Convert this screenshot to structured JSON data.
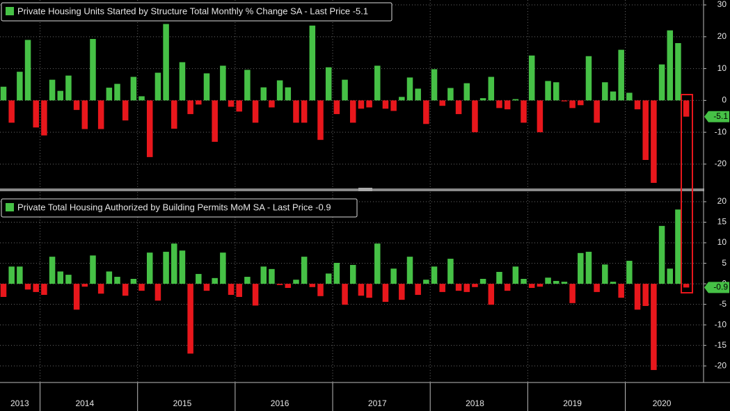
{
  "chart_data": [
    {
      "type": "bar",
      "title": "Private Housing Units Started by Structure Total Monthly % Change SA - Last Price -5.1",
      "values": [
        4.3,
        -7,
        9,
        19,
        -8.5,
        -11,
        6.5,
        3,
        7.8,
        -3,
        -9,
        19.3,
        -9,
        4,
        5.2,
        -6.3,
        7.4,
        1.3,
        -17.8,
        8.7,
        24,
        -8.9,
        12,
        -4.3,
        -1.3,
        8.5,
        -13,
        10.9,
        -2,
        -3.5,
        9.6,
        -7,
        4.1,
        -2.2,
        6.3,
        4.1,
        -7,
        -7,
        23.5,
        -12.4,
        10.4,
        -4.3,
        6.5,
        -7,
        -2.6,
        -2.2,
        10.9,
        -2.6,
        -3.3,
        1.1,
        7.2,
        3.7,
        -7.4,
        9.8,
        -1.7,
        3.9,
        -4.3,
        5.4,
        -10,
        0.7,
        7.4,
        -2.4,
        -2.8,
        0.4,
        -7,
        14.1,
        -10,
        6.1,
        5.7,
        -0.3,
        -2.4,
        -1.5,
        13.9,
        -7,
        5.7,
        2.8,
        15.9,
        2.4,
        -2.8,
        -18.7,
        -25.9,
        11.3,
        22,
        18,
        -5.1
      ],
      "colors": {
        "positive": "#46c146",
        "negative": "#e8171c"
      },
      "ylim": [
        -27,
        31.1
      ],
      "yticks": [
        30,
        20,
        10,
        0,
        -10,
        -20
      ],
      "grid": true
    },
    {
      "type": "bar",
      "title": "Private Total Housing Authorized by Building Permits MoM SA - Last Price -0.9",
      "categories": [
        null,
        null,
        "2013",
        null,
        null,
        null,
        null,
        null,
        null,
        null,
        "2014",
        null,
        null,
        null,
        null,
        null,
        null,
        null,
        null,
        null,
        null,
        null,
        "2015",
        null,
        null,
        null,
        null,
        null,
        null,
        null,
        null,
        null,
        null,
        null,
        "2016",
        null,
        null,
        null,
        null,
        null,
        null,
        null,
        null,
        null,
        null,
        null,
        "2017",
        null,
        null,
        null,
        null,
        null,
        null,
        null,
        null,
        null,
        null,
        null,
        "2018",
        null,
        null,
        null,
        null,
        null,
        null,
        null,
        null,
        null,
        null,
        null,
        "2019",
        null,
        null,
        null,
        null,
        null,
        null,
        null,
        null,
        null,
        null,
        "2020",
        null,
        null,
        null
      ],
      "values": [
        -3.2,
        4.2,
        4.2,
        -1.4,
        -2,
        -2.7,
        6.6,
        3,
        2.2,
        -6.3,
        -0.7,
        6.9,
        -2.4,
        3,
        1.7,
        -2.9,
        1.2,
        -1.7,
        7.6,
        -4.1,
        7.8,
        9.8,
        8.1,
        -17,
        2.4,
        -1.7,
        1.4,
        7.6,
        -2.7,
        -3.2,
        1.7,
        -5.3,
        4.2,
        3.6,
        -0.3,
        -1,
        1,
        6.6,
        -0.8,
        -3,
        2.5,
        5.1,
        -5.1,
        4.6,
        -2.9,
        -3.4,
        9.8,
        -4.4,
        3.7,
        -3.9,
        6.6,
        -2.7,
        1,
        4.2,
        -2,
        6.1,
        -1.7,
        -2,
        -0.8,
        1.2,
        -5.1,
        2.9,
        -1.7,
        4.2,
        1.2,
        -1,
        -0.7,
        1.5,
        0.7,
        0.5,
        -4.7,
        7.5,
        7.8,
        -2,
        4.7,
        0.5,
        -3.4,
        5.6,
        -6.3,
        -5.4,
        -21,
        14.1,
        3.7,
        18.1,
        -0.9
      ],
      "colors": {
        "positive": "#46c146",
        "negative": "#e8171c"
      },
      "ylim": [
        -23.7,
        21.7
      ],
      "yticks": [
        20,
        15,
        10,
        5,
        0,
        -5,
        -10,
        -15,
        -20
      ],
      "grid": true
    }
  ]
}
